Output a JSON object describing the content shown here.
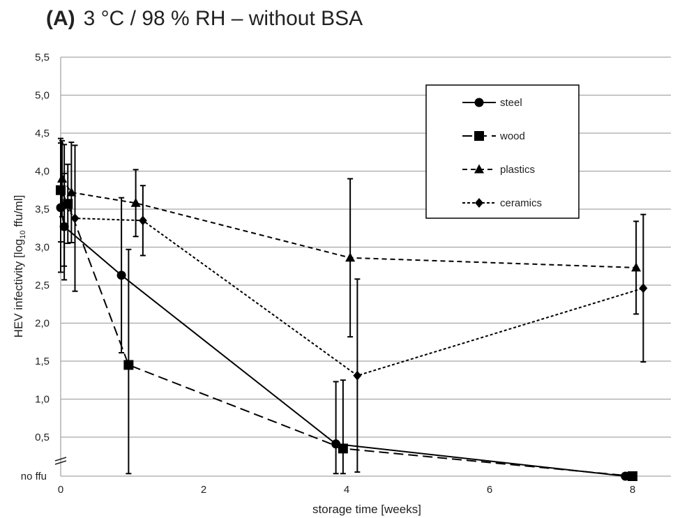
{
  "chart_data": {
    "type": "line",
    "panel_label": "(A)",
    "title": "3 °C / 98 % RH – without BSA",
    "xlabel": "storage time [weeks]",
    "ylabel": {
      "prefix": "HEV infectivity [log",
      "sub": "10",
      "suffix": " ffu/ml]"
    },
    "xlim": [
      0,
      8.6
    ],
    "ylim": [
      -0.05,
      5.5
    ],
    "x_ticks": [
      "0",
      "2",
      "4",
      "6",
      "8"
    ],
    "y_ticks": [
      "5,5",
      "5,0",
      "4,5",
      "4,0",
      "3,5",
      "3,0",
      "2,5",
      "2,0",
      "1,5",
      "1,0",
      "0,5"
    ],
    "y_extra_label": "no ffu",
    "grid": "horizontal",
    "axis_break": "y",
    "legend_position": "top-right",
    "series": [
      {
        "name": "steel",
        "marker": "circle",
        "dash": "solid",
        "x": [
          0.0,
          0.05,
          0.85,
          3.85,
          7.9
        ],
        "y": [
          3.52,
          3.27,
          2.63,
          0.41,
          0.0
        ],
        "err": [
          0.85,
          0.7,
          1.02,
          0.82,
          0.0
        ]
      },
      {
        "name": "wood",
        "marker": "square",
        "dash": "long-dash",
        "x": [
          0.0,
          0.1,
          0.95,
          3.95,
          8.0
        ],
        "y": [
          3.75,
          3.57,
          1.45,
          0.35,
          0.0
        ],
        "err": [
          0.68,
          0.52,
          1.52,
          0.9,
          0.0
        ]
      },
      {
        "name": "plastics",
        "marker": "triangle",
        "dash": "short-dash",
        "x": [
          0.02,
          0.15,
          1.05,
          4.05,
          8.05
        ],
        "y": [
          3.9,
          3.72,
          3.58,
          2.86,
          2.73
        ],
        "err": [
          0.5,
          0.66,
          0.44,
          1.04,
          0.61
        ]
      },
      {
        "name": "ceramics",
        "marker": "diamond",
        "dash": "dotted",
        "x": [
          0.05,
          0.2,
          1.15,
          4.15,
          8.15
        ],
        "y": [
          3.55,
          3.38,
          3.35,
          1.31,
          2.46
        ],
        "err": [
          0.8,
          0.96,
          0.46,
          1.27,
          0.97
        ]
      }
    ]
  }
}
